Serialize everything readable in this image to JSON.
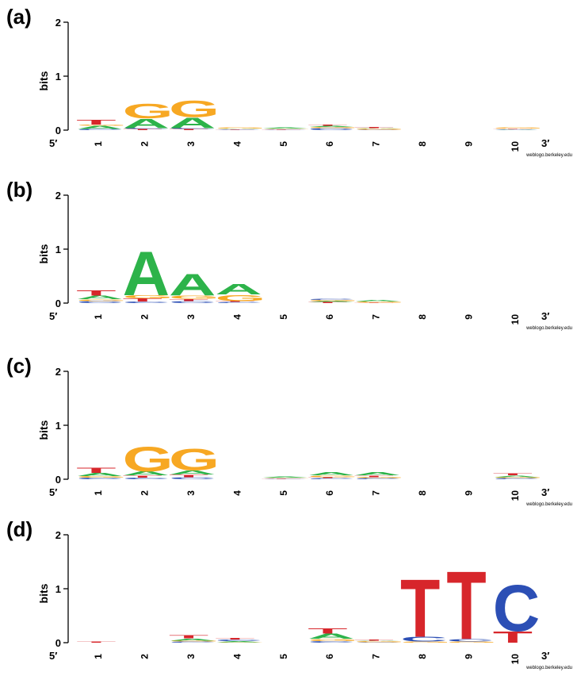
{
  "colors": {
    "A": "#2db34a",
    "C": "#2c4fb5",
    "G": "#f7a823",
    "T": "#d7262b",
    "axis": "#000000"
  },
  "chart_data": [
    {
      "type": "sequence-logo",
      "panel_label": "(a)",
      "ylabel": "bits",
      "ylim": [
        0,
        2
      ],
      "yticks": [
        "0",
        "1",
        "2"
      ],
      "five_prime_label": "5′",
      "three_prime_label": "3′",
      "credit": "weblogo.berkeley.edu",
      "positions": [
        {
          "label": "1",
          "letters": [
            {
              "base": "C",
              "bits": 0.02
            },
            {
              "base": "A",
              "bits": 0.06
            },
            {
              "base": "G",
              "bits": 0.02
            },
            {
              "base": "T",
              "bits": 0.09
            }
          ]
        },
        {
          "label": "2",
          "letters": [
            {
              "base": "T",
              "bits": 0.02
            },
            {
              "base": "C",
              "bits": 0.02
            },
            {
              "base": "A",
              "bits": 0.18
            },
            {
              "base": "G",
              "bits": 0.27
            }
          ]
        },
        {
          "label": "3",
          "letters": [
            {
              "base": "T",
              "bits": 0.02
            },
            {
              "base": "C",
              "bits": 0.02
            },
            {
              "base": "A",
              "bits": 0.2
            },
            {
              "base": "G",
              "bits": 0.31
            }
          ]
        },
        {
          "label": "4",
          "letters": [
            {
              "base": "T",
              "bits": 0.01
            },
            {
              "base": "C",
              "bits": 0.01
            },
            {
              "base": "A",
              "bits": 0.01
            },
            {
              "base": "G",
              "bits": 0.02
            }
          ]
        },
        {
          "label": "5",
          "letters": [
            {
              "base": "T",
              "bits": 0.01
            },
            {
              "base": "C",
              "bits": 0.01
            },
            {
              "base": "G",
              "bits": 0.01
            },
            {
              "base": "A",
              "bits": 0.02
            }
          ]
        },
        {
          "label": "6",
          "letters": [
            {
              "base": "C",
              "bits": 0.04
            },
            {
              "base": "G",
              "bits": 0.02
            },
            {
              "base": "A",
              "bits": 0.02
            },
            {
              "base": "T",
              "bits": 0.02
            }
          ]
        },
        {
          "label": "7",
          "letters": [
            {
              "base": "C",
              "bits": 0.01
            },
            {
              "base": "G",
              "bits": 0.02
            },
            {
              "base": "A",
              "bits": 0.01
            },
            {
              "base": "T",
              "bits": 0.02
            }
          ]
        },
        {
          "label": "8",
          "letters": []
        },
        {
          "label": "9",
          "letters": []
        },
        {
          "label": "10",
          "letters": [
            {
              "base": "C",
              "bits": 0.01
            },
            {
              "base": "A",
              "bits": 0.01
            },
            {
              "base": "T",
              "bits": 0.01
            },
            {
              "base": "G",
              "bits": 0.02
            }
          ]
        }
      ]
    },
    {
      "type": "sequence-logo",
      "panel_label": "(b)",
      "ylabel": "bits",
      "ylim": [
        0,
        2
      ],
      "yticks": [
        "0",
        "1",
        "2"
      ],
      "five_prime_label": "5′",
      "three_prime_label": "3′",
      "credit": "weblogo.berkeley.edu",
      "positions": [
        {
          "label": "1",
          "letters": [
            {
              "base": "C",
              "bits": 0.04
            },
            {
              "base": "G",
              "bits": 0.03
            },
            {
              "base": "A",
              "bits": 0.07
            },
            {
              "base": "T",
              "bits": 0.1
            }
          ]
        },
        {
          "label": "2",
          "letters": [
            {
              "base": "C",
              "bits": 0.03
            },
            {
              "base": "T",
              "bits": 0.06
            },
            {
              "base": "G",
              "bits": 0.06
            },
            {
              "base": "A",
              "bits": 0.84
            }
          ]
        },
        {
          "label": "3",
          "letters": [
            {
              "base": "C",
              "bits": 0.04
            },
            {
              "base": "T",
              "bits": 0.04
            },
            {
              "base": "G",
              "bits": 0.06
            },
            {
              "base": "A",
              "bits": 0.41
            }
          ]
        },
        {
          "label": "4",
          "letters": [
            {
              "base": "C",
              "bits": 0.02
            },
            {
              "base": "T",
              "bits": 0.02
            },
            {
              "base": "G",
              "bits": 0.12
            },
            {
              "base": "A",
              "bits": 0.2
            }
          ]
        },
        {
          "label": "5",
          "letters": []
        },
        {
          "label": "6",
          "letters": [
            {
              "base": "T",
              "bits": 0.02
            },
            {
              "base": "A",
              "bits": 0.02
            },
            {
              "base": "G",
              "bits": 0.02
            },
            {
              "base": "C",
              "bits": 0.02
            }
          ]
        },
        {
          "label": "7",
          "letters": [
            {
              "base": "T",
              "bits": 0.01
            },
            {
              "base": "G",
              "bits": 0.02
            },
            {
              "base": "A",
              "bits": 0.03
            }
          ]
        },
        {
          "label": "8",
          "letters": []
        },
        {
          "label": "9",
          "letters": []
        },
        {
          "label": "10",
          "letters": []
        }
      ]
    },
    {
      "type": "sequence-logo",
      "panel_label": "(c)",
      "ylabel": "bits",
      "ylim": [
        0,
        2
      ],
      "yticks": [
        "0",
        "1",
        "2"
      ],
      "five_prime_label": "5′",
      "three_prime_label": "3′",
      "credit": "weblogo.berkeley.edu",
      "positions": [
        {
          "label": "1",
          "letters": [
            {
              "base": "C",
              "bits": 0.03
            },
            {
              "base": "G",
              "bits": 0.03
            },
            {
              "base": "A",
              "bits": 0.06
            },
            {
              "base": "T",
              "bits": 0.1
            }
          ]
        },
        {
          "label": "2",
          "letters": [
            {
              "base": "C",
              "bits": 0.03
            },
            {
              "base": "T",
              "bits": 0.04
            },
            {
              "base": "A",
              "bits": 0.08
            },
            {
              "base": "G",
              "bits": 0.47
            }
          ]
        },
        {
          "label": "3",
          "letters": [
            {
              "base": "C",
              "bits": 0.04
            },
            {
              "base": "T",
              "bits": 0.05
            },
            {
              "base": "A",
              "bits": 0.08
            },
            {
              "base": "G",
              "bits": 0.41
            }
          ]
        },
        {
          "label": "4",
          "letters": []
        },
        {
          "label": "5",
          "letters": [
            {
              "base": "T",
              "bits": 0.01
            },
            {
              "base": "C",
              "bits": 0.01
            },
            {
              "base": "G",
              "bits": 0.01
            },
            {
              "base": "A",
              "bits": 0.02
            }
          ]
        },
        {
          "label": "6",
          "letters": [
            {
              "base": "C",
              "bits": 0.02
            },
            {
              "base": "T",
              "bits": 0.02
            },
            {
              "base": "G",
              "bits": 0.03
            },
            {
              "base": "A",
              "bits": 0.06
            }
          ]
        },
        {
          "label": "7",
          "letters": [
            {
              "base": "C",
              "bits": 0.02
            },
            {
              "base": "G",
              "bits": 0.02
            },
            {
              "base": "T",
              "bits": 0.03
            },
            {
              "base": "A",
              "bits": 0.06
            }
          ]
        },
        {
          "label": "8",
          "letters": []
        },
        {
          "label": "9",
          "letters": []
        },
        {
          "label": "10",
          "letters": [
            {
              "base": "C",
              "bits": 0.02
            },
            {
              "base": "G",
              "bits": 0.02
            },
            {
              "base": "A",
              "bits": 0.03
            },
            {
              "base": "T",
              "bits": 0.04
            }
          ]
        }
      ]
    },
    {
      "type": "sequence-logo",
      "panel_label": "(d)",
      "ylabel": "bits",
      "ylim": [
        0,
        2
      ],
      "yticks": [
        "0",
        "1",
        "2"
      ],
      "five_prime_label": "5′",
      "three_prime_label": "3′",
      "credit": "weblogo.berkeley.edu",
      "positions": [
        {
          "label": "1",
          "letters": [
            {
              "base": "T",
              "bits": 0.02
            }
          ]
        },
        {
          "label": "2",
          "letters": []
        },
        {
          "label": "3",
          "letters": [
            {
              "base": "C",
              "bits": 0.02
            },
            {
              "base": "G",
              "bits": 0.02
            },
            {
              "base": "A",
              "bits": 0.04
            },
            {
              "base": "T",
              "bits": 0.06
            }
          ]
        },
        {
          "label": "4",
          "letters": [
            {
              "base": "G",
              "bits": 0.01
            },
            {
              "base": "A",
              "bits": 0.02
            },
            {
              "base": "C",
              "bits": 0.03
            },
            {
              "base": "T",
              "bits": 0.03
            }
          ]
        },
        {
          "label": "5",
          "letters": []
        },
        {
          "label": "6",
          "letters": [
            {
              "base": "C",
              "bits": 0.03
            },
            {
              "base": "G",
              "bits": 0.04
            },
            {
              "base": "A",
              "bits": 0.1
            },
            {
              "base": "T",
              "bits": 0.1
            }
          ]
        },
        {
          "label": "7",
          "letters": [
            {
              "base": "C",
              "bits": 0.01
            },
            {
              "base": "G",
              "bits": 0.02
            },
            {
              "base": "A",
              "bits": 0.01
            },
            {
              "base": "T",
              "bits": 0.02
            }
          ]
        },
        {
          "label": "8",
          "letters": [
            {
              "base": "G",
              "bits": 0.02
            },
            {
              "base": "C",
              "bits": 0.09
            },
            {
              "base": "T",
              "bits": 1.1
            }
          ]
        },
        {
          "label": "9",
          "letters": [
            {
              "base": "G",
              "bits": 0.02
            },
            {
              "base": "C",
              "bits": 0.05
            },
            {
              "base": "T",
              "bits": 1.3
            }
          ]
        },
        {
          "label": "10",
          "letters": [
            {
              "base": "T",
              "bits": 0.22
            },
            {
              "base": "C",
              "bits": 0.88
            }
          ]
        }
      ]
    }
  ]
}
